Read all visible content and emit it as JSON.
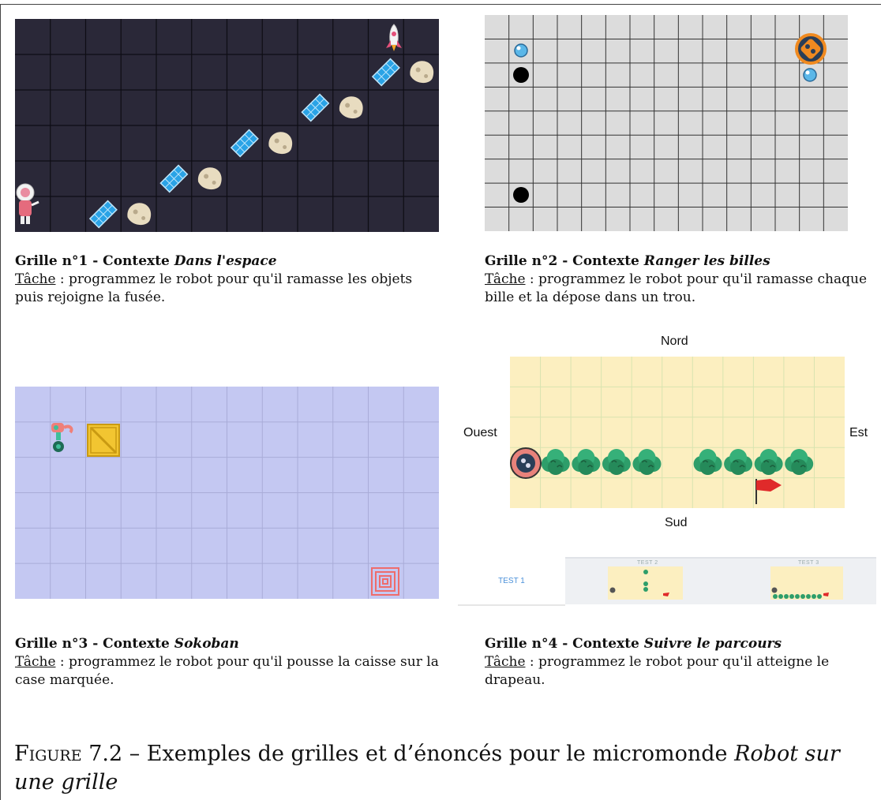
{
  "grids": [
    {
      "title_prefix": "Grille n°1 - Contexte ",
      "title_context": "Dans l'espace",
      "task_label": "Tâche",
      "task_text": " : programmez le robot pour qu'il ramasse les objets puis rejoigne la fusée."
    },
    {
      "title_prefix": "Grille n°2 - Contexte ",
      "title_context": "Ranger les billes",
      "task_label": "Tâche",
      "task_text": " : programmez le robot pour qu'il ramasse chaque bille et la dépose dans un trou."
    },
    {
      "title_prefix": "Grille n°3 - Contexte ",
      "title_context": "Sokoban",
      "task_label": "Tâche",
      "task_text": " : programmez le robot pour qu'il pousse la caisse sur la case marquée."
    },
    {
      "title_prefix": "Grille n°4 - Contexte ",
      "title_context": "Suivre le parcours",
      "task_label": "Tâche",
      "task_text": " : programmez le robot pour qu'il atteigne le drapeau."
    }
  ],
  "directions": {
    "north": "Nord",
    "south": "Sud",
    "west": "Ouest",
    "east": "Est"
  },
  "tests": {
    "tab1": "TEST 1",
    "tab2": "TEST 2",
    "tab3": "TEST 3"
  },
  "figure": {
    "label": "Figure 7.2",
    "text": " – Exemples de grilles et d’énoncés pour le micromonde ",
    "emph": "Robot sur une grille"
  },
  "colors": {
    "space_bg": "#2a2838",
    "marbles_bg": "#dcdcdc",
    "sokoban_bg": "#c4c8f2",
    "path_bg": "#fcefc0",
    "tree": "#2e9e6a",
    "flag": "#e02a2a"
  }
}
